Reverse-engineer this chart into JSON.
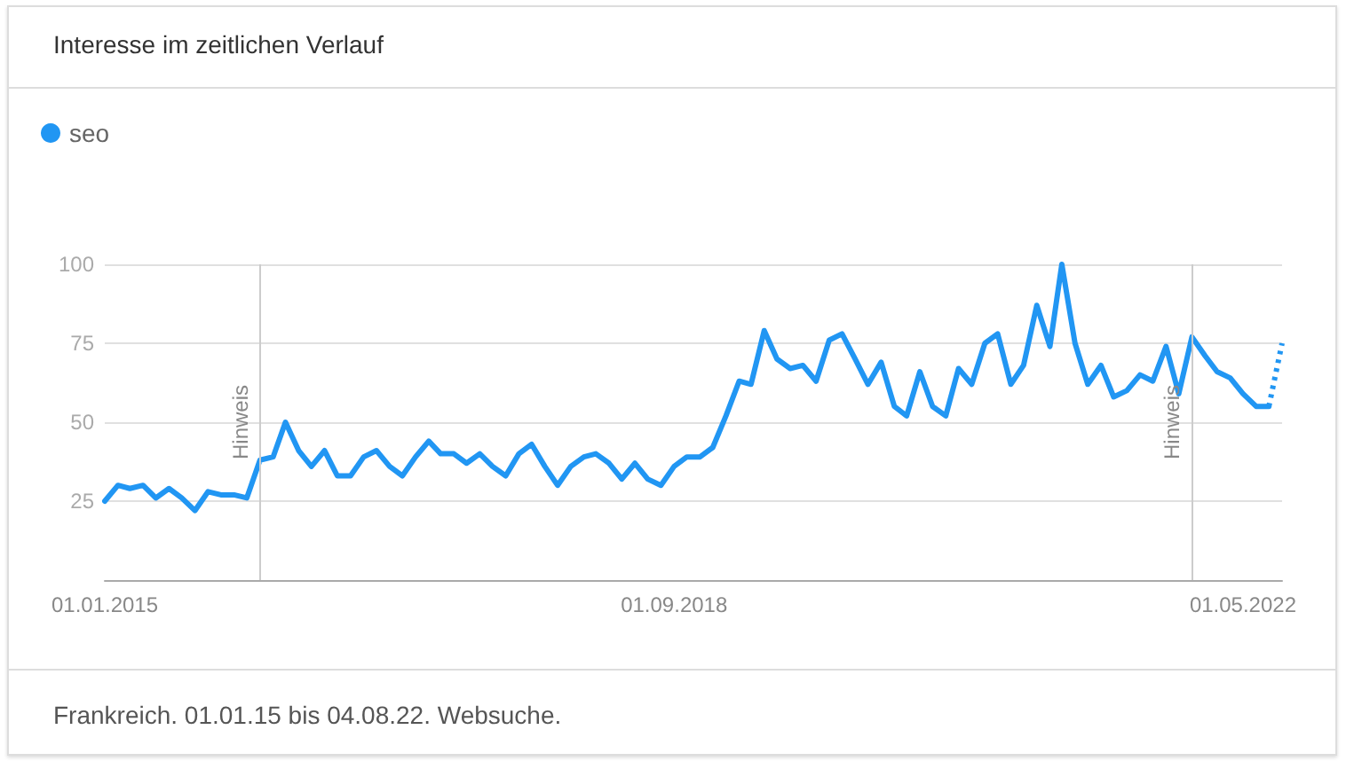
{
  "chart_data": {
    "type": "line",
    "title": "Interesse im zeitlichen Verlauf",
    "annotations": [
      "Frankreich. 01.01.15 bis 04.08.22. Websuche."
    ],
    "x": [
      "2015-01",
      "2015-02",
      "2015-03",
      "2015-04",
      "2015-05",
      "2015-06",
      "2015-07",
      "2015-08",
      "2015-09",
      "2015-10",
      "2015-11",
      "2015-12",
      "2016-01",
      "2016-02",
      "2016-03",
      "2016-04",
      "2016-05",
      "2016-06",
      "2016-07",
      "2016-08",
      "2016-09",
      "2016-10",
      "2016-11",
      "2016-12",
      "2017-01",
      "2017-02",
      "2017-03",
      "2017-04",
      "2017-05",
      "2017-06",
      "2017-07",
      "2017-08",
      "2017-09",
      "2017-10",
      "2017-11",
      "2017-12",
      "2018-01",
      "2018-02",
      "2018-03",
      "2018-04",
      "2018-05",
      "2018-06",
      "2018-07",
      "2018-08",
      "2018-09",
      "2018-10",
      "2018-11",
      "2018-12",
      "2019-01",
      "2019-02",
      "2019-03",
      "2019-04",
      "2019-05",
      "2019-06",
      "2019-07",
      "2019-08",
      "2019-09",
      "2019-10",
      "2019-11",
      "2019-12",
      "2020-01",
      "2020-02",
      "2020-03",
      "2020-04",
      "2020-05",
      "2020-06",
      "2020-07",
      "2020-08",
      "2020-09",
      "2020-10",
      "2020-11",
      "2020-12",
      "2021-01",
      "2021-02",
      "2021-03",
      "2021-04",
      "2021-05",
      "2021-06",
      "2021-07",
      "2021-08",
      "2021-09",
      "2021-10",
      "2021-11",
      "2021-12",
      "2022-01",
      "2022-02",
      "2022-03",
      "2022-04",
      "2022-05",
      "2022-06",
      "2022-07",
      "2022-08"
    ],
    "series": [
      {
        "name": "seo",
        "color": "#2196f3",
        "line_style": "solid",
        "values": [
          25,
          30,
          29,
          30,
          26,
          29,
          26,
          22,
          28,
          27,
          27,
          26,
          38,
          39,
          50,
          41,
          36,
          41,
          33,
          33,
          39,
          41,
          36,
          33,
          39,
          44,
          40,
          40,
          37,
          40,
          36,
          33,
          40,
          43,
          36,
          30,
          36,
          39,
          40,
          37,
          32,
          37,
          32,
          30,
          36,
          39,
          39,
          42,
          52,
          63,
          62,
          79,
          70,
          67,
          68,
          63,
          76,
          78,
          70,
          62,
          69,
          55,
          52,
          66,
          55,
          52,
          67,
          62,
          75,
          78,
          62,
          68,
          87,
          74,
          100,
          75,
          62,
          68,
          58,
          60,
          65,
          63,
          74,
          59,
          77,
          71,
          66,
          64,
          59,
          55,
          55,
          null
        ]
      },
      {
        "color": "#2196f3",
        "line_style": "dotted",
        "values": [
          null,
          null,
          null,
          null,
          null,
          null,
          null,
          null,
          null,
          null,
          null,
          null,
          null,
          null,
          null,
          null,
          null,
          null,
          null,
          null,
          null,
          null,
          null,
          null,
          null,
          null,
          null,
          null,
          null,
          null,
          null,
          null,
          null,
          null,
          null,
          null,
          null,
          null,
          null,
          null,
          null,
          null,
          null,
          null,
          null,
          null,
          null,
          null,
          null,
          null,
          null,
          null,
          null,
          null,
          null,
          null,
          null,
          null,
          null,
          null,
          null,
          null,
          null,
          null,
          null,
          null,
          null,
          null,
          null,
          null,
          null,
          null,
          null,
          null,
          null,
          null,
          null,
          null,
          null,
          null,
          null,
          null,
          null,
          null,
          null,
          null,
          null,
          null,
          null,
          null,
          55,
          75
        ]
      }
    ],
    "xlim": [
      "2015-01",
      "2022-08"
    ],
    "xticks": [
      {
        "value": "2015-01-01",
        "label": "01.01.2015"
      },
      {
        "value": "2018-09-01",
        "label": "01.09.2018"
      },
      {
        "value": "2022-05-01",
        "label": "01.05.2022"
      }
    ],
    "ylim": [
      0,
      100
    ],
    "yticks": [
      25,
      50,
      75,
      100
    ],
    "ref_lines": [
      {
        "axis": "x",
        "value": "2016-01",
        "label": "Hinweis",
        "color": "#cccccc"
      },
      {
        "axis": "x",
        "value": "2022-01",
        "label": "Hinweis",
        "color": "#cccccc"
      }
    ],
    "grid": "y",
    "legend": "top left",
    "marker": "none"
  }
}
